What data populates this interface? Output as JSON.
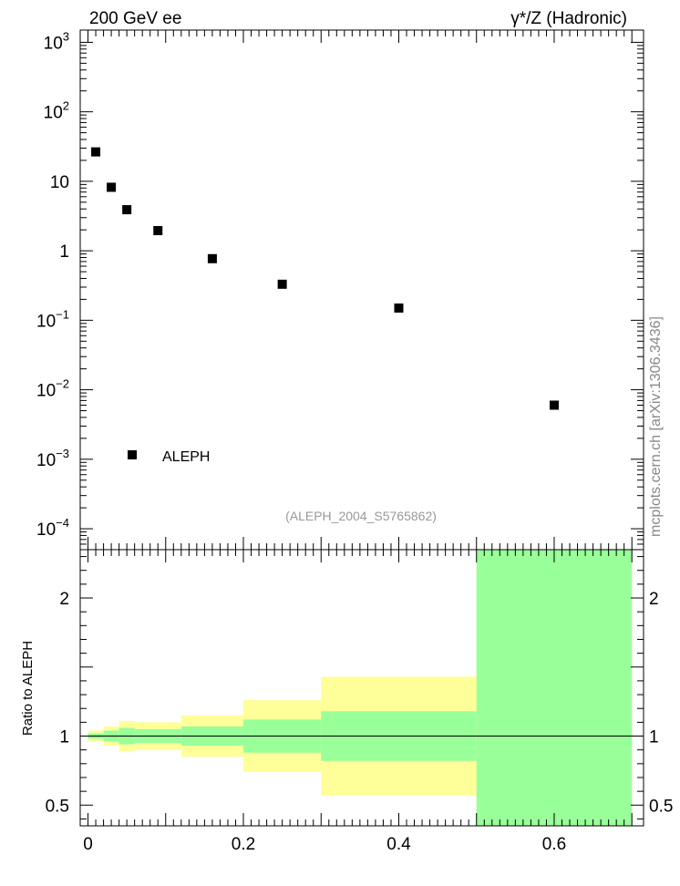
{
  "header": {
    "left": "200 GeV ee",
    "right": "γ*/Z (Hadronic)"
  },
  "side_label": "mcplots.cern.ch [arXiv:1306.3436]",
  "chart_data": [
    {
      "type": "scatter",
      "x": [
        0.01,
        0.03,
        0.05,
        0.09,
        0.16,
        0.25,
        0.4,
        0.6
      ],
      "series": [
        {
          "name": "ALEPH",
          "values": [
            26.5,
            8.2,
            3.9,
            1.95,
            0.77,
            0.33,
            0.15,
            0.006
          ],
          "color": "#000000"
        }
      ],
      "xlim": [
        -0.01,
        0.715
      ],
      "ylim": [
        5e-05,
        1500
      ],
      "yscale": "log",
      "y_ticks": [
        {
          "base": "10",
          "exp": "−4"
        },
        {
          "base": "10",
          "exp": "−3"
        },
        {
          "base": "10",
          "exp": "−2"
        },
        {
          "base": "10",
          "exp": "−1"
        },
        {
          "base": "1",
          "exp": ""
        },
        {
          "base": "10",
          "exp": ""
        },
        {
          "base": "10",
          "exp": "2"
        },
        {
          "base": "10",
          "exp": "3"
        }
      ],
      "legend": "bottom-left",
      "annotation": "(ALEPH_2004_S5765862)"
    },
    {
      "type": "area",
      "ylabel": "Ratio to ALEPH",
      "xlim": [
        -0.01,
        0.715
      ],
      "ylim": [
        0.35,
        2.35
      ],
      "x_ticks": [
        "0",
        "0.2",
        "0.4",
        "0.6"
      ],
      "y_ticks": [
        "0.5",
        "1",
        "2"
      ],
      "reference_line": 1,
      "bands": {
        "edges": [
          0,
          0.02,
          0.04,
          0.06,
          0.12,
          0.2,
          0.3,
          0.5,
          0.7
        ],
        "yellow": [
          [
            0.96,
            1.04
          ],
          [
            0.93,
            1.07
          ],
          [
            0.89,
            1.11
          ],
          [
            0.9,
            1.1
          ],
          [
            0.85,
            1.15
          ],
          [
            0.74,
            1.26
          ],
          [
            0.57,
            1.43
          ],
          [
            0.35,
            2.35
          ]
        ],
        "green": [
          [
            0.98,
            1.02
          ],
          [
            0.96,
            1.04
          ],
          [
            0.94,
            1.06
          ],
          [
            0.95,
            1.05
          ],
          [
            0.93,
            1.07
          ],
          [
            0.88,
            1.12
          ],
          [
            0.82,
            1.18
          ],
          [
            0.35,
            2.35
          ]
        ],
        "yellow_color": "#ffff99",
        "green_color": "#99ff99"
      }
    }
  ]
}
